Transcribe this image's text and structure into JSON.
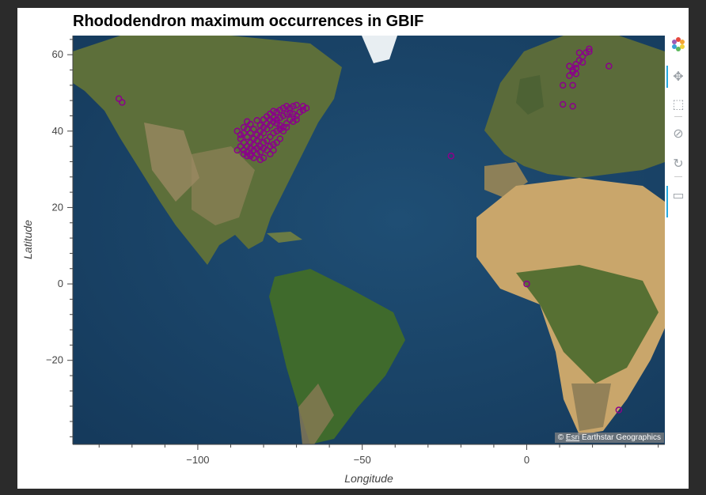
{
  "title": "Rhododendron maximum occurrences in GBIF",
  "chart_data": {
    "type": "scatter",
    "title": "Rhododendron maximum occurrences in GBIF",
    "xlabel": "Longitude",
    "ylabel": "Latitude",
    "xlim": [
      -138,
      42
    ],
    "ylim": [
      -42,
      65
    ],
    "xticks": [
      -100,
      -50,
      0
    ],
    "yticks": [
      -20,
      0,
      20,
      40,
      60
    ],
    "xtick_labels": [
      "−100",
      "−50",
      "0"
    ],
    "ytick_labels": [
      "−20",
      "0",
      "20",
      "40",
      "60"
    ],
    "basemap": "satellite imagery",
    "marker_color": "#8b008b",
    "series": [
      {
        "points": [
          [
            -124,
            48.5
          ],
          [
            -123,
            47.5
          ],
          [
            -84,
            35.5
          ],
          [
            -83,
            36.5
          ],
          [
            -82,
            37.5
          ],
          [
            -81,
            38.5
          ],
          [
            -80,
            39.5
          ],
          [
            -79,
            40.5
          ],
          [
            -78,
            41.5
          ],
          [
            -77,
            42.5
          ],
          [
            -76,
            43.0
          ],
          [
            -75,
            43.5
          ],
          [
            -74,
            44.0
          ],
          [
            -73,
            44.5
          ],
          [
            -72,
            44.8
          ],
          [
            -71,
            44.5
          ],
          [
            -70,
            44.0
          ],
          [
            -69,
            45.0
          ],
          [
            -68,
            45.5
          ],
          [
            -67,
            46.0
          ],
          [
            -85,
            36.0
          ],
          [
            -84,
            37.0
          ],
          [
            -83,
            38.0
          ],
          [
            -82,
            39.0
          ],
          [
            -81,
            40.0
          ],
          [
            -80,
            41.0
          ],
          [
            -79,
            42.0
          ],
          [
            -78,
            43.0
          ],
          [
            -77,
            43.5
          ],
          [
            -76,
            42.0
          ],
          [
            -75,
            41.5
          ],
          [
            -74,
            41.0
          ],
          [
            -73,
            42.0
          ],
          [
            -72,
            43.0
          ],
          [
            -71,
            42.5
          ],
          [
            -70,
            43.0
          ],
          [
            -86,
            35.0
          ],
          [
            -85,
            34.5
          ],
          [
            -84,
            34.0
          ],
          [
            -83,
            35.0
          ],
          [
            -82,
            35.5
          ],
          [
            -81,
            36.0
          ],
          [
            -80,
            37.0
          ],
          [
            -79,
            37.5
          ],
          [
            -78,
            38.5
          ],
          [
            -77,
            39.5
          ],
          [
            -76,
            40.0
          ],
          [
            -75,
            40.5
          ],
          [
            -74,
            40.0
          ],
          [
            -73,
            41.0
          ],
          [
            -83,
            40.5
          ],
          [
            -84,
            39.5
          ],
          [
            -85,
            38.5
          ],
          [
            -86,
            37.0
          ],
          [
            -87,
            36.0
          ],
          [
            -88,
            35.0
          ],
          [
            -87,
            39.0
          ],
          [
            -86,
            41.0
          ],
          [
            -85,
            42.5
          ],
          [
            -84,
            41.8
          ],
          [
            -82,
            42.8
          ],
          [
            -81,
            41.5
          ],
          [
            -80,
            43.0
          ],
          [
            -79,
            43.8
          ],
          [
            -78,
            44.5
          ],
          [
            -77,
            45.2
          ],
          [
            -76,
            45.0
          ],
          [
            -75,
            45.5
          ],
          [
            -74,
            46.0
          ],
          [
            -73,
            46.5
          ],
          [
            -72,
            46.0
          ],
          [
            -71,
            46.5
          ],
          [
            -70,
            46.8
          ],
          [
            -68,
            46.5
          ],
          [
            -80,
            35.5
          ],
          [
            -79,
            35.0
          ],
          [
            -78,
            36.0
          ],
          [
            -77,
            36.5
          ],
          [
            -76,
            37.0
          ],
          [
            -75,
            38.0
          ],
          [
            -82,
            34.0
          ],
          [
            -81,
            34.5
          ],
          [
            -84,
            33.5
          ],
          [
            -83,
            33.0
          ],
          [
            -81,
            32.5
          ],
          [
            -80,
            33.0
          ],
          [
            -88,
            40.0
          ],
          [
            -87,
            38.0
          ],
          [
            -86,
            39.5
          ],
          [
            -85,
            40.5
          ],
          [
            -78,
            34.0
          ],
          [
            -77,
            35.0
          ],
          [
            -85,
            33.5
          ],
          [
            -86,
            34.0
          ],
          [
            -23,
            33.5
          ],
          [
            0,
            0
          ],
          [
            11,
            52
          ],
          [
            11,
            47
          ],
          [
            14,
            46.5
          ],
          [
            13,
            57
          ],
          [
            14,
            56
          ],
          [
            15,
            57.5
          ],
          [
            16,
            58.5
          ],
          [
            17,
            59.5
          ],
          [
            18,
            60.5
          ],
          [
            19,
            61.5
          ],
          [
            14,
            55.5
          ],
          [
            13,
            54.5
          ],
          [
            15,
            55
          ],
          [
            14,
            52
          ],
          [
            25,
            57
          ],
          [
            16,
            60.5
          ],
          [
            19,
            60.8
          ],
          [
            17,
            58
          ],
          [
            15,
            56.5
          ],
          [
            28,
            -33
          ]
        ]
      }
    ]
  },
  "attribution": {
    "copyright": "©",
    "esri": "Esri",
    "text": "Earthstar Geographics"
  },
  "toolbar": {
    "logo": "bokeh-logo-icon",
    "tools": [
      "pan-icon",
      "box-zoom-icon",
      "wheel-zoom-icon",
      "reset-icon",
      "hover-icon"
    ]
  }
}
